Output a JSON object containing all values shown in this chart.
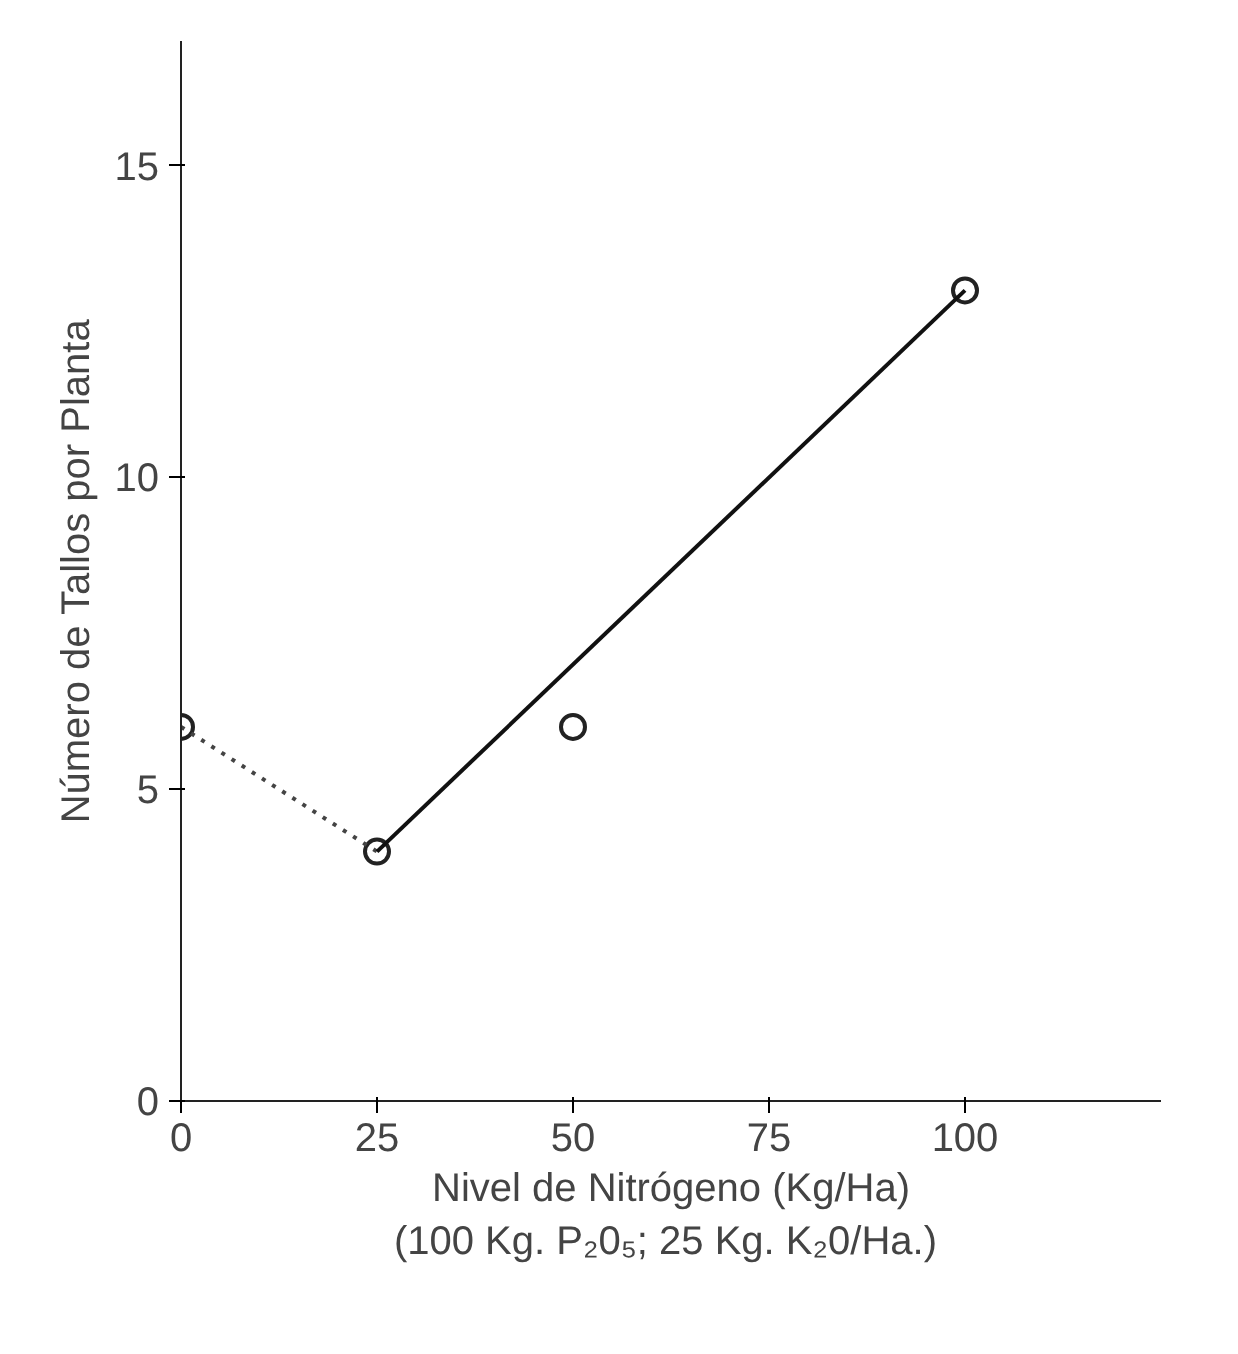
{
  "chart_data": {
    "type": "scatter",
    "xlabel": "Nivel de Nitrógeno (Kg/Ha)\n(100 Kg. P₂0₅;  25 Kg. K₂0/Ha.)",
    "ylabel": "Número de Tallos por Planta",
    "xlim": [
      0,
      125
    ],
    "ylim": [
      0,
      17
    ],
    "xticks": [
      0,
      25,
      50,
      75,
      100
    ],
    "yticks": [
      0,
      5,
      10,
      15
    ],
    "grid": false,
    "series": [
      {
        "color": "#222222",
        "marker": "circle",
        "x": [
          0,
          25,
          50,
          100
        ],
        "values": [
          6,
          4,
          6,
          13
        ]
      },
      {
        "type": "line",
        "color": "#444444",
        "line_style": "dotted",
        "x": [
          0,
          25
        ],
        "values": [
          6,
          4
        ]
      },
      {
        "type": "line",
        "color": "#111111",
        "line_style": "solid",
        "x": [
          25,
          100
        ],
        "values": [
          4,
          13
        ]
      }
    ]
  }
}
